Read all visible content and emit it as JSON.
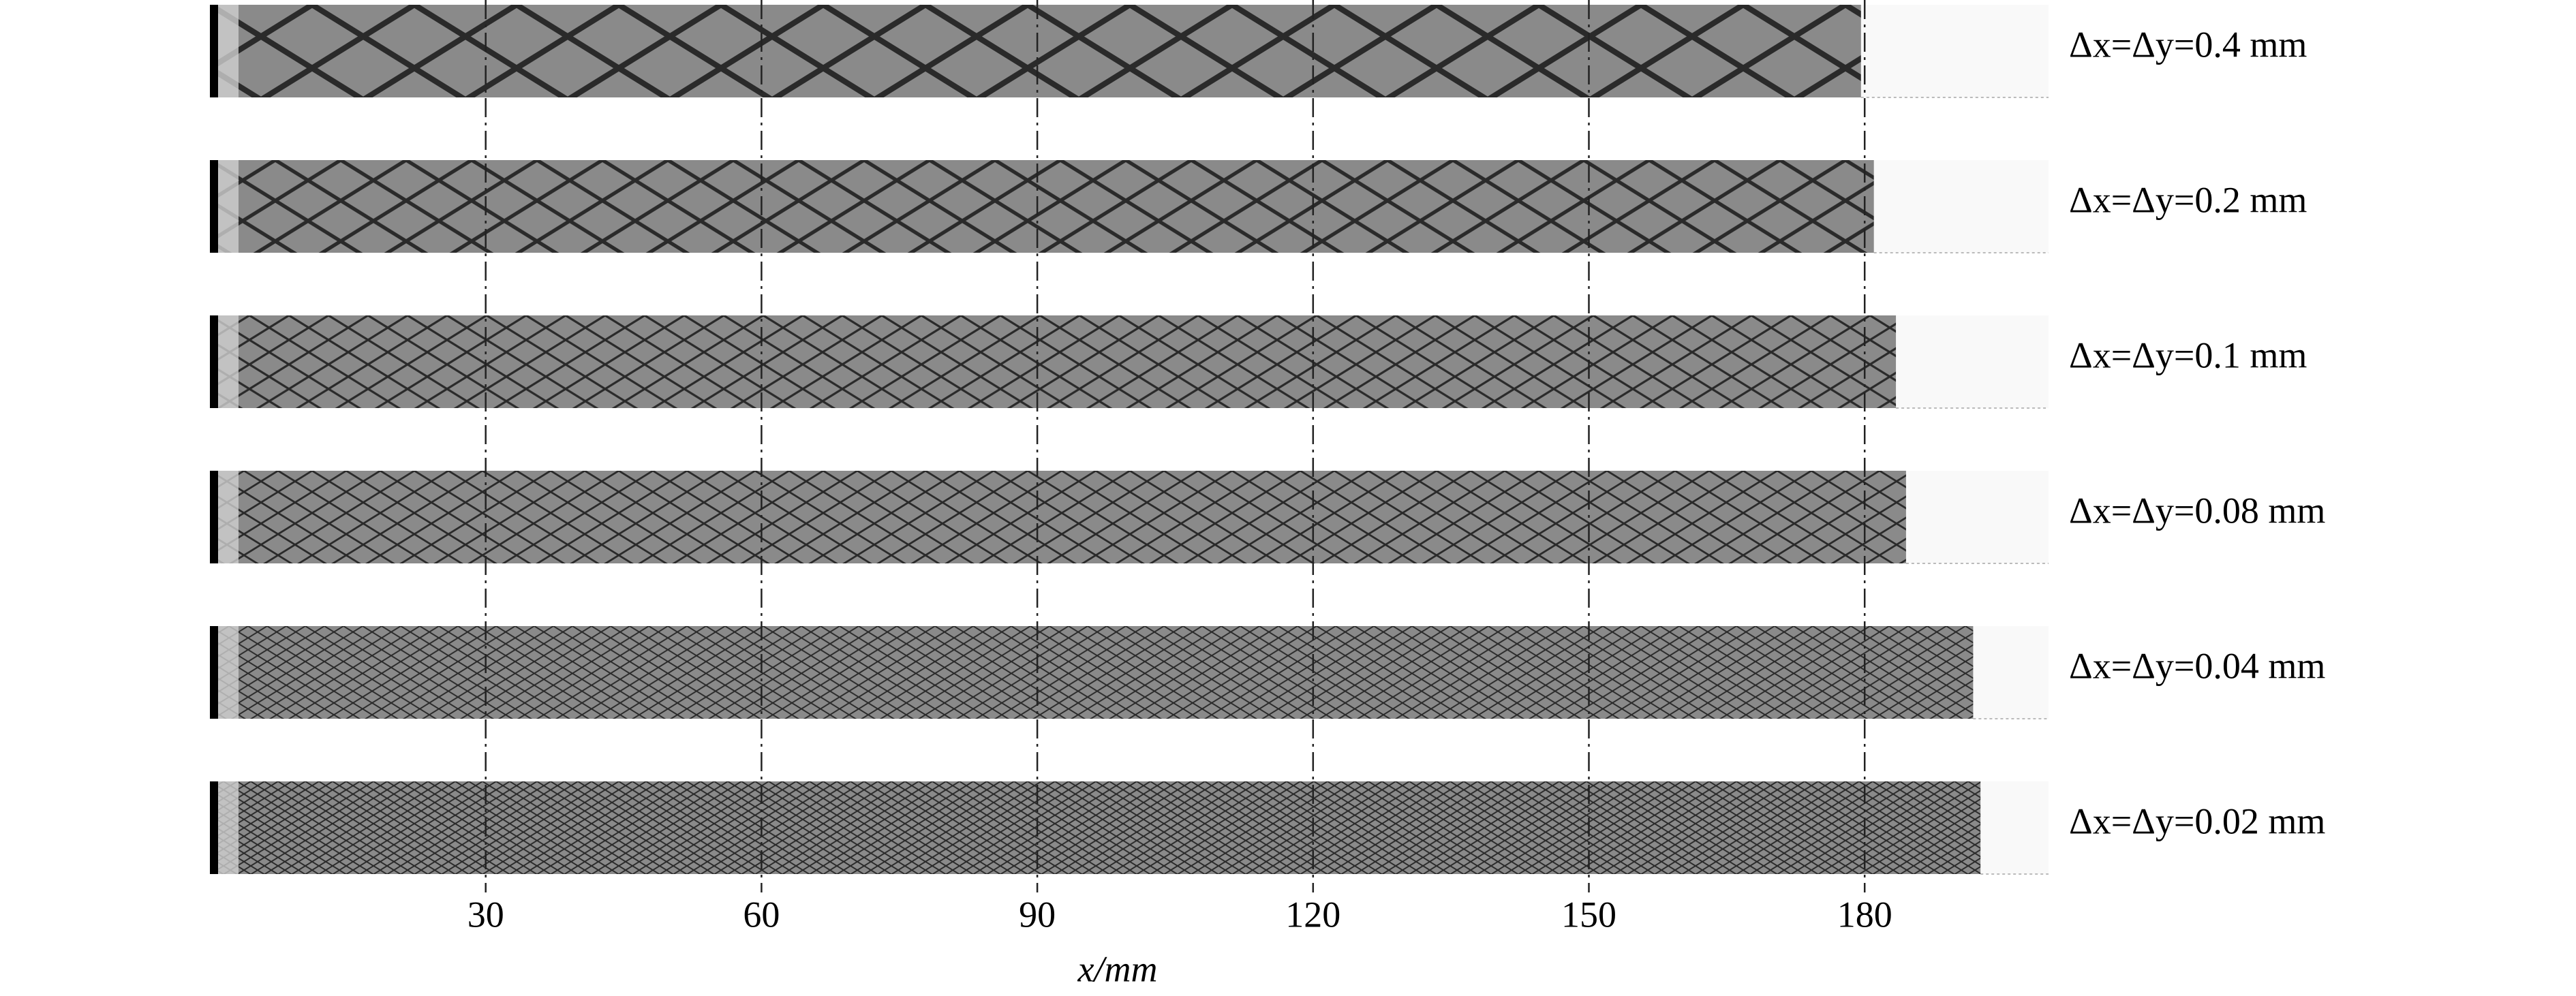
{
  "chart_data": {
    "type": "strip",
    "xlabel": "x/mm",
    "xlim": [
      0,
      200
    ],
    "xticks": [
      30,
      60,
      90,
      120,
      150,
      180
    ],
    "grid": true,
    "color": "#8a8a8a",
    "categories": [
      "Δx=Δy=0.4 mm",
      "Δx=Δy=0.2 mm",
      "Δx=Δy=0.1 mm",
      "Δx=Δy=0.08 mm",
      "Δx=Δy=0.04 mm",
      "Δx=Δy=0.02 mm"
    ],
    "values": [
      179.6,
      181,
      183.4,
      184.5,
      191.8,
      192.6
    ]
  }
}
